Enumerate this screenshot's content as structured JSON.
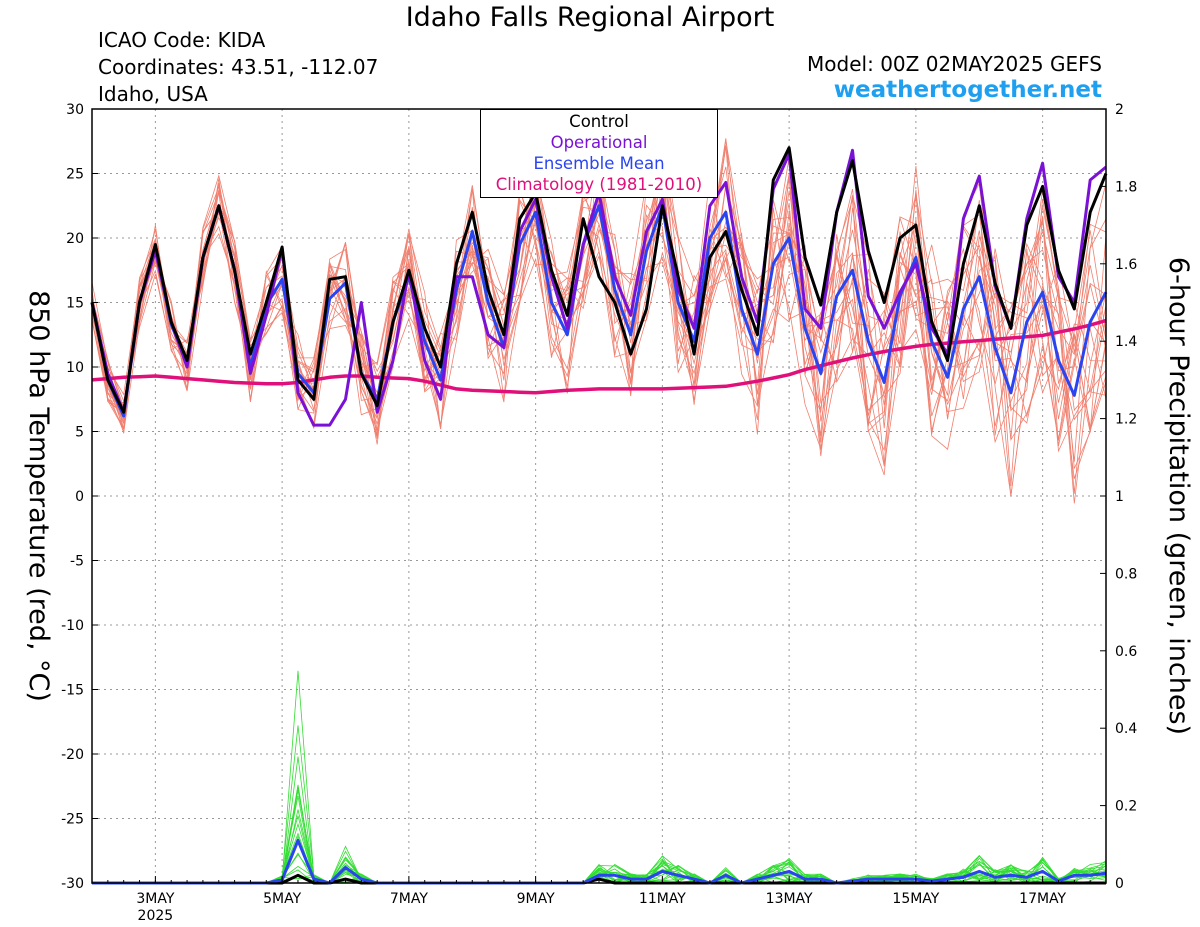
{
  "header": {
    "title": "Idaho Falls Regional Airport",
    "icao": "ICAO Code: KIDA",
    "coordinates": "Coordinates: 43.51, -112.07",
    "region": "Idaho, USA",
    "model": "Model: 00Z 02MAY2025 GEFS",
    "site": "weathertogether.net"
  },
  "legend": {
    "control": "Control",
    "operational": "Operational",
    "ensemble_mean": "Ensemble Mean",
    "climatology": "Climatology (1981-2010)"
  },
  "colors": {
    "control": "#000000",
    "operational": "#7a12d6",
    "ensemble_mean": "#2a44f0",
    "climatology": "#e0107a",
    "members_temp": "#f08070",
    "members_precip": "#33dd33",
    "site": "#1e9ff0"
  },
  "chart_data": {
    "type": "line",
    "ylabel": "850 hPa Temperature (red, °C)",
    "y2label": "6-hour Precipitation (green, inches)",
    "ylim": [
      -30,
      30
    ],
    "y2lim": [
      0,
      2
    ],
    "yticks": [
      30,
      25,
      20,
      15,
      10,
      5,
      0,
      -5,
      -10,
      -15,
      -20,
      -25,
      -30
    ],
    "y2ticks": [
      2,
      1.8,
      1.6,
      1.4,
      1.2,
      1,
      0.8,
      0.6,
      0.4,
      0.2,
      0
    ],
    "x_start_hour": 0,
    "x_step_hours": 6,
    "x_end_hour": 384,
    "xticks": [
      {
        "hour": 24,
        "label": "3MAY",
        "sub": "2025"
      },
      {
        "hour": 72,
        "label": "5MAY",
        "sub": ""
      },
      {
        "hour": 120,
        "label": "7MAY",
        "sub": ""
      },
      {
        "hour": 168,
        "label": "9MAY",
        "sub": ""
      },
      {
        "hour": 216,
        "label": "11MAY",
        "sub": ""
      },
      {
        "hour": 264,
        "label": "13MAY",
        "sub": ""
      },
      {
        "hour": 312,
        "label": "15MAY",
        "sub": ""
      },
      {
        "hour": 360,
        "label": "17MAY",
        "sub": ""
      }
    ],
    "grid": true,
    "legend_position": "top-center",
    "series": [
      {
        "name": "Control",
        "key": "control",
        "width": 3,
        "values": [
          15,
          9,
          6.5,
          15,
          19.5,
          13.5,
          10.5,
          18.5,
          22.5,
          17.5,
          11,
          15,
          19.3,
          9,
          7.5,
          16.8,
          17,
          9.5,
          7,
          13.5,
          17.5,
          13,
          10,
          18,
          22,
          16,
          12.5,
          21.5,
          23.5,
          17.5,
          14,
          21.5,
          17,
          15,
          11,
          14.5,
          22.5,
          17,
          11,
          18.5,
          20.5,
          16,
          12.5,
          24.5,
          27,
          18.5,
          14.8,
          22,
          26,
          19,
          15,
          20,
          21,
          13.5,
          10.5,
          18,
          22.5,
          16.5,
          13,
          21,
          24,
          17.5,
          14.5,
          22,
          25
        ]
      },
      {
        "name": "Operational",
        "key": "operational",
        "width": 3,
        "values": [
          15,
          9.5,
          6.5,
          15,
          19,
          13.5,
          10,
          18.5,
          22.5,
          17.5,
          9.5,
          14,
          19.2,
          8,
          5.5,
          5.5,
          7.5,
          15,
          6.5,
          10.5,
          17.5,
          10.5,
          7.5,
          17,
          17,
          12.5,
          11.5,
          20.5,
          23,
          17,
          13,
          19.5,
          23.5,
          17,
          14,
          20.5,
          23,
          16,
          13,
          22.5,
          24.3,
          17,
          13.5,
          23.8,
          26.5,
          14.5,
          13,
          22,
          26.8,
          15.5,
          13,
          15.8,
          18,
          13,
          11,
          21.5,
          24.8,
          16.3,
          13,
          21.5,
          25.8,
          17,
          15,
          24.5,
          25.5
        ]
      },
      {
        "name": "Ensemble Mean",
        "key": "ensemble_mean",
        "width": 3,
        "values": [
          15,
          9,
          6.2,
          15,
          19.2,
          13.3,
          10.3,
          18.5,
          22.5,
          17.5,
          10,
          14.8,
          16.8,
          9.5,
          8,
          15.3,
          16.5,
          9.5,
          7.5,
          13.5,
          17,
          12,
          9,
          16,
          20.5,
          15,
          11.5,
          19.5,
          22,
          15,
          12.5,
          19.5,
          22.5,
          16,
          12.5,
          19,
          22.5,
          15,
          12,
          20,
          22,
          14.5,
          11,
          18,
          20,
          13,
          9.5,
          15.5,
          17.5,
          12,
          8.8,
          15.5,
          18.5,
          12,
          9.2,
          14.5,
          17,
          11.5,
          8,
          13.5,
          15.8,
          10.5,
          7.8,
          13.5,
          15.8
        ]
      },
      {
        "name": "Climatology (1981-2010)",
        "key": "climatology",
        "width": 3.5,
        "values": [
          9,
          9.1,
          9.2,
          9.25,
          9.3,
          9.2,
          9.1,
          9,
          8.9,
          8.8,
          8.75,
          8.7,
          8.7,
          8.8,
          9,
          9.2,
          9.3,
          9.3,
          9.2,
          9.15,
          9.1,
          8.9,
          8.6,
          8.3,
          8.2,
          8.15,
          8.1,
          8.05,
          8,
          8.1,
          8.2,
          8.25,
          8.3,
          8.3,
          8.3,
          8.3,
          8.3,
          8.35,
          8.4,
          8.45,
          8.5,
          8.7,
          8.9,
          9.15,
          9.4,
          9.8,
          10.1,
          10.4,
          10.7,
          10.95,
          11.2,
          11.4,
          11.6,
          11.75,
          11.85,
          11.95,
          12.05,
          12.15,
          12.25,
          12.35,
          12.45,
          12.7,
          12.95,
          13.25,
          13.6
        ]
      }
    ],
    "precip_series": [
      {
        "name": "Control precip",
        "key": "control",
        "width": 3,
        "values": [
          0,
          0,
          0,
          0,
          0,
          0,
          0,
          0,
          0,
          0,
          0,
          0,
          0,
          0.02,
          0,
          0,
          0.01,
          0,
          0,
          0,
          0,
          0,
          0,
          0,
          0,
          0,
          0,
          0,
          0,
          0,
          0,
          0,
          0.01,
          0,
          0,
          0,
          0,
          0,
          0,
          0,
          0,
          0,
          0,
          0,
          0,
          0,
          0,
          0,
          0,
          0,
          0,
          0,
          0,
          0,
          0,
          0,
          0,
          0,
          0,
          0,
          0,
          0,
          0,
          0,
          0
        ]
      },
      {
        "name": "Ensemble Mean precip",
        "key": "ensemble_mean",
        "width": 3,
        "values": [
          0,
          0,
          0,
          0,
          0,
          0,
          0,
          0,
          0,
          0,
          0,
          0,
          0.008,
          0.11,
          0.01,
          0,
          0.04,
          0.01,
          0,
          0,
          0,
          0,
          0,
          0,
          0,
          0,
          0,
          0,
          0,
          0,
          0,
          0,
          0.02,
          0.02,
          0.01,
          0.01,
          0.03,
          0.02,
          0.01,
          0,
          0.02,
          0,
          0.01,
          0.02,
          0.03,
          0.01,
          0.01,
          0,
          0.005,
          0.01,
          0.01,
          0.01,
          0.01,
          0.005,
          0.01,
          0.015,
          0.03,
          0.015,
          0.02,
          0.015,
          0.03,
          0.005,
          0.02,
          0.02,
          0.025
        ]
      }
    ]
  }
}
